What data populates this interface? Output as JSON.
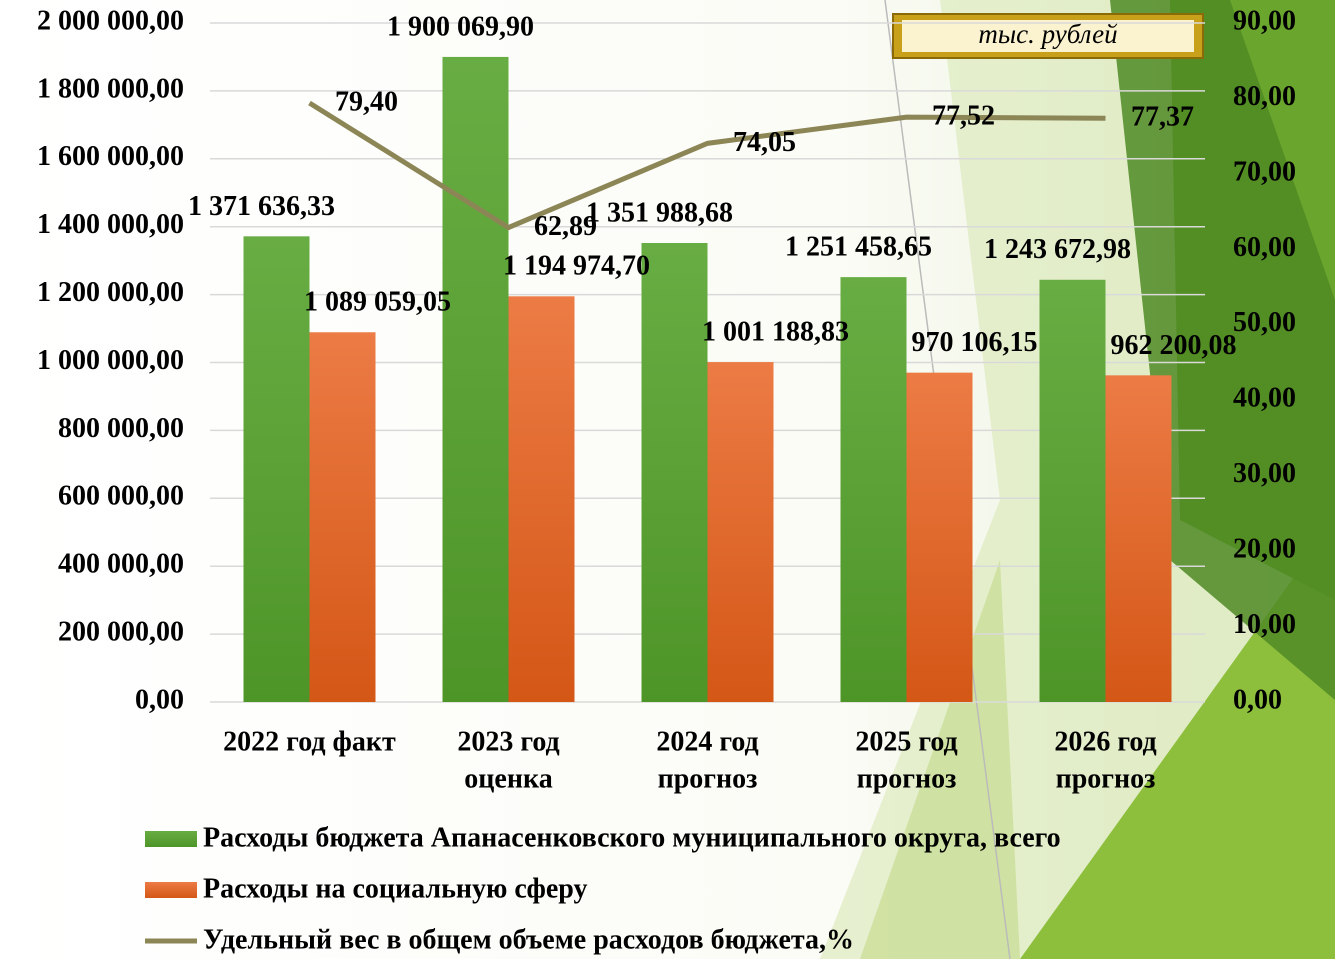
{
  "chart_data": {
    "type": "bar",
    "annotation": "тыс. рублей",
    "categories": [
      [
        "2022 год факт"
      ],
      [
        "2023 год",
        "оценка"
      ],
      [
        "2024 год",
        "прогноз"
      ],
      [
        "2025 год",
        "прогноз"
      ],
      [
        "2026 год",
        "прогноз"
      ]
    ],
    "series": [
      {
        "name": "Расходы бюджета Апанасенковского муниципального округа, всего",
        "type": "bar",
        "color": "#5b9f35",
        "values": [
          1371636.33,
          1900069.9,
          1351988.68,
          1251458.65,
          1243672.98
        ],
        "value_labels": [
          "1 371 636,33",
          "1 900 069,90",
          "1 351 988,68",
          "1 251 458,65",
          "1 243 672,98"
        ]
      },
      {
        "name": "Расходы на социальную сферу",
        "type": "bar",
        "color": "#e2682c",
        "values": [
          1089059.05,
          1194974.7,
          1001188.83,
          970106.15,
          962200.08
        ],
        "value_labels": [
          "1 089 059,05",
          "1 194 974,70",
          "1 001 188,83",
          "970 106,15",
          "962 200,08"
        ]
      },
      {
        "name": "Удельный вес в общем объеме расходов бюджета,%",
        "type": "line",
        "axis": "y2",
        "color": "#8c8657",
        "values": [
          79.4,
          62.89,
          74.05,
          77.52,
          77.37
        ],
        "value_labels": [
          "79,40",
          "62,89",
          "74,05",
          "77,52",
          "77,37"
        ]
      }
    ],
    "ylim": [
      0,
      2000000
    ],
    "yticks": [
      {
        "value": 0,
        "label": "0,00"
      },
      {
        "value": 200000,
        "label": "200 000,00"
      },
      {
        "value": 400000,
        "label": "400 000,00"
      },
      {
        "value": 600000,
        "label": "600 000,00"
      },
      {
        "value": 800000,
        "label": "800 000,00"
      },
      {
        "value": 1000000,
        "label": "1 000 000,00"
      },
      {
        "value": 1200000,
        "label": "1 200 000,00"
      },
      {
        "value": 1400000,
        "label": "1 400 000,00"
      },
      {
        "value": 1600000,
        "label": "1 600 000,00"
      },
      {
        "value": 1800000,
        "label": "1 800 000,00"
      },
      {
        "value": 2000000,
        "label": "2 000 000,00"
      }
    ],
    "y2lim": [
      0,
      90
    ],
    "y2ticks": [
      {
        "value": 0,
        "label": "0,00"
      },
      {
        "value": 10,
        "label": "10,00"
      },
      {
        "value": 20,
        "label": "20,00"
      },
      {
        "value": 30,
        "label": "30,00"
      },
      {
        "value": 40,
        "label": "40,00"
      },
      {
        "value": 50,
        "label": "50,00"
      },
      {
        "value": 60,
        "label": "60,00"
      },
      {
        "value": 70,
        "label": "70,00"
      },
      {
        "value": 80,
        "label": "80,00"
      },
      {
        "value": 90,
        "label": "90,00"
      }
    ],
    "grid": true,
    "legend": "bottom"
  }
}
